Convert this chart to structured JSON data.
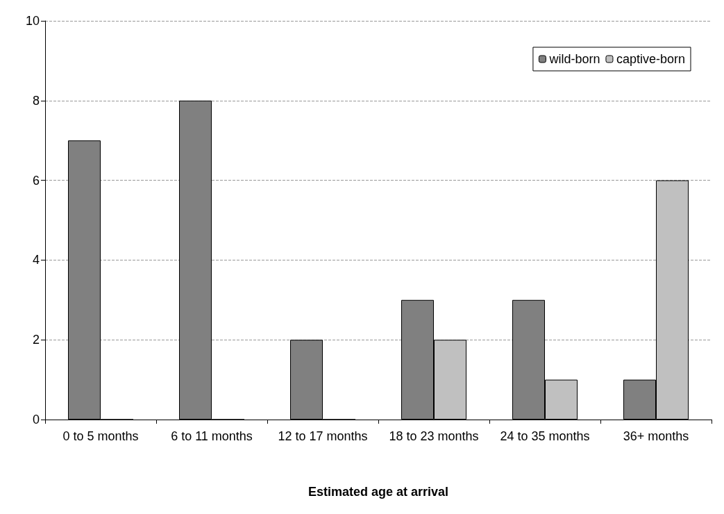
{
  "chart_data": {
    "type": "bar",
    "xlabel": "Estimated age at arrival",
    "categories": [
      "0 to 5 months",
      "6 to 11 months",
      "12 to 17 months",
      "18 to 23 months",
      "24 to 35 months",
      "36+ months"
    ],
    "series": [
      {
        "name": "wild-born",
        "color": "#808080",
        "values": [
          7,
          8,
          2,
          3,
          3,
          1
        ]
      },
      {
        "name": "captive-born",
        "color": "#c0c0c0",
        "values": [
          0,
          0,
          0,
          2,
          1,
          6
        ]
      }
    ],
    "ylim": [
      0,
      10
    ],
    "yticks": [
      0,
      2,
      4,
      6,
      8,
      10
    ],
    "grid": "y",
    "legend": "top right"
  }
}
